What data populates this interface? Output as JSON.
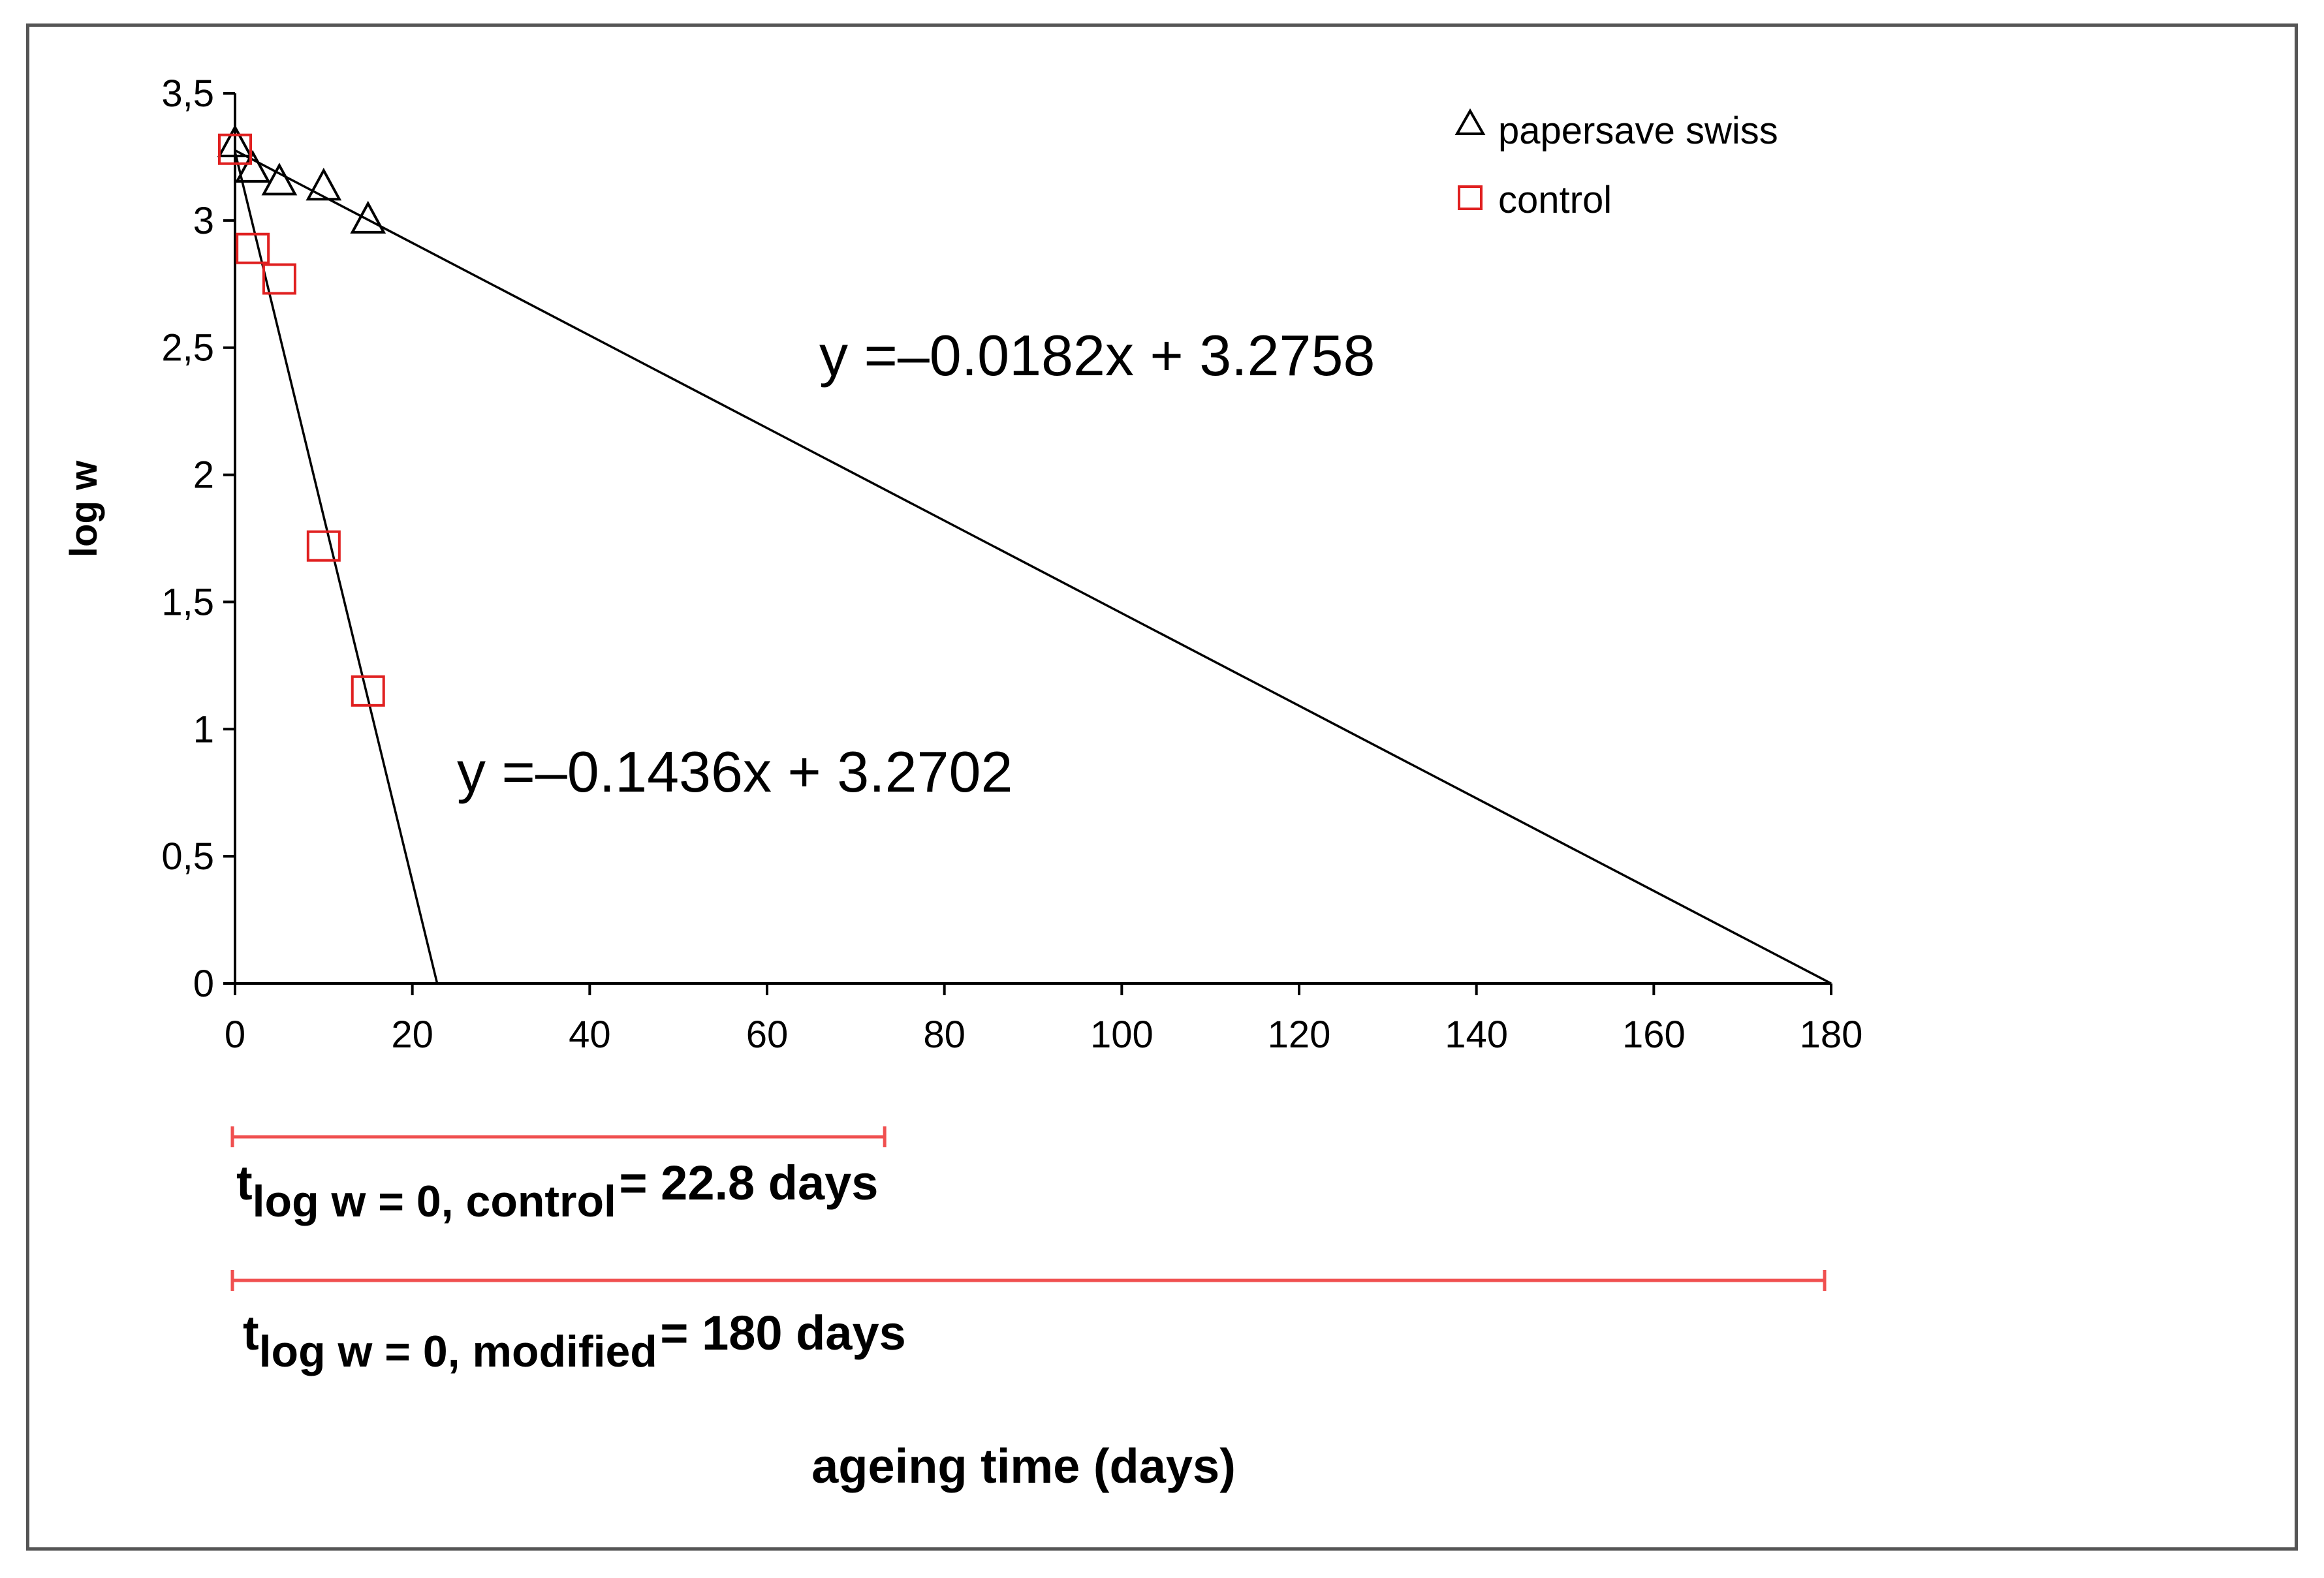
{
  "chart_data": {
    "type": "scatter",
    "title": "",
    "xlabel": "ageing time (days)",
    "ylabel": "log w",
    "xlim": [
      0,
      180
    ],
    "ylim": [
      0,
      3.5
    ],
    "x_ticks": [
      "0",
      "20",
      "40",
      "60",
      "80",
      "100",
      "120",
      "140",
      "160",
      "180"
    ],
    "y_ticks": [
      "0",
      "0,5",
      "1",
      "1,5",
      "2",
      "2,5",
      "3",
      "3,5"
    ],
    "grid": false,
    "legend_position": "top-right",
    "series": [
      {
        "name": "papersave swiss",
        "marker": "triangle",
        "color": "#000000",
        "points": [
          [
            0,
            3.3
          ],
          [
            2,
            3.2
          ],
          [
            5,
            3.15
          ],
          [
            10,
            3.13
          ],
          [
            15,
            3.0
          ]
        ],
        "trendline": {
          "slope": -0.0182,
          "intercept": 3.2758,
          "x_range": [
            0,
            180
          ],
          "label": "y =–0.0182x + 3.2758"
        }
      },
      {
        "name": "control",
        "marker": "square",
        "color": "#e02020",
        "points": [
          [
            0,
            3.28
          ],
          [
            2,
            2.89
          ],
          [
            5,
            2.77
          ],
          [
            10,
            1.72
          ],
          [
            15,
            1.15
          ]
        ],
        "trendline": {
          "slope": -0.1436,
          "intercept": 3.2702,
          "x_range": [
            0,
            22.8
          ],
          "label": "y =–0.1436x + 3.2702"
        }
      }
    ],
    "annotations": [
      {
        "prefix": "t",
        "subscript": "log w = 0, control",
        "suffix": "= 22.8 days",
        "x_range": [
          0,
          74
        ]
      },
      {
        "prefix": "t",
        "subscript": "log w = 0, modified",
        "suffix": "= 180 days",
        "x_range": [
          0,
          180
        ]
      }
    ]
  }
}
